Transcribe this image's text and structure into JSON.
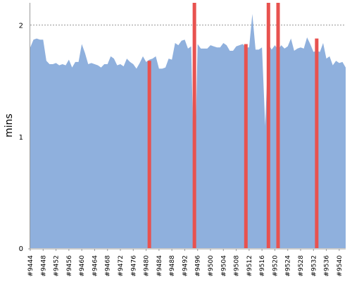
{
  "chart_data": {
    "type": "area",
    "xlabel": "",
    "ylabel": "mins",
    "ylim": [
      0,
      2.2
    ],
    "yticks": [
      0,
      1,
      2
    ],
    "grid": {
      "horizontal": true,
      "style": "dotted"
    },
    "legend": "none",
    "colors": {
      "area": "#8fb0dd",
      "marker": "#e8524f",
      "grid": "#777777",
      "axis": "#999999"
    },
    "x_tick_labels": [
      "#9444",
      "#9448",
      "#9452",
      "#9456",
      "#9460",
      "#9464",
      "#9468",
      "#9472",
      "#9476",
      "#9480",
      "#9484",
      "#9488",
      "#9492",
      "#9496",
      "#9500",
      "#9504",
      "#9508",
      "#9512",
      "#9516",
      "#9520",
      "#9524",
      "#9528",
      "#9532",
      "#9536",
      "#9540"
    ],
    "build_range": [
      9444,
      9542
    ],
    "series": [
      {
        "type": "area",
        "builds": [
          9444,
          9445,
          9446,
          9447,
          9448,
          9449,
          9450,
          9451,
          9452,
          9453,
          9454,
          9455,
          9456,
          9457,
          9458,
          9459,
          9460,
          9461,
          9462,
          9463,
          9464,
          9465,
          9466,
          9467,
          9468,
          9469,
          9470,
          9471,
          9472,
          9473,
          9474,
          9475,
          9476,
          9477,
          9478,
          9479,
          9480,
          9481,
          9482,
          9483,
          9484,
          9485,
          9486,
          9487,
          9488,
          9489,
          9490,
          9491,
          9492,
          9493,
          9494,
          9495,
          9496,
          9497,
          9498,
          9499,
          9500,
          9501,
          9502,
          9503,
          9504,
          9505,
          9506,
          9507,
          9508,
          9509,
          9510,
          9511,
          9512,
          9513,
          9514,
          9515,
          9516,
          9517,
          9518,
          9519,
          9520,
          9521,
          9522,
          9523,
          9524,
          9525,
          9526,
          9527,
          9528,
          9529,
          9530,
          9531,
          9532,
          9533,
          9534,
          9535,
          9536,
          9537,
          9538,
          9539,
          9540,
          9541,
          9542
        ],
        "values": [
          1.8,
          1.87,
          1.88,
          1.87,
          1.87,
          1.68,
          1.65,
          1.65,
          1.66,
          1.64,
          1.65,
          1.64,
          1.69,
          1.62,
          1.67,
          1.67,
          1.83,
          1.75,
          1.65,
          1.66,
          1.65,
          1.64,
          1.62,
          1.65,
          1.65,
          1.72,
          1.7,
          1.64,
          1.65,
          1.63,
          1.7,
          1.67,
          1.65,
          1.61,
          1.66,
          1.72,
          1.67,
          1.69,
          1.7,
          1.72,
          1.61,
          1.61,
          1.62,
          1.7,
          1.69,
          1.84,
          1.82,
          1.86,
          1.87,
          1.79,
          1.81,
          0.5,
          1.83,
          1.79,
          1.79,
          1.79,
          1.82,
          1.81,
          1.8,
          1.8,
          1.84,
          1.82,
          1.77,
          1.77,
          1.81,
          1.82,
          1.83,
          1.8,
          1.8,
          2.1,
          1.78,
          1.78,
          1.8,
          1.1,
          1.83,
          1.78,
          1.82,
          1.78,
          1.82,
          1.79,
          1.81,
          1.88,
          1.77,
          1.79,
          1.8,
          1.79,
          1.89,
          1.83,
          1.76,
          1.77,
          1.76,
          1.84,
          1.7,
          1.72,
          1.64,
          1.68,
          1.66,
          1.67,
          1.62
        ]
      },
      {
        "type": "markers",
        "builds": [
          9481,
          9495,
          9511,
          9518,
          9521,
          9533
        ],
        "top": [
          1.68,
          2.2,
          1.83,
          2.2,
          2.2,
          1.88
        ]
      }
    ]
  }
}
